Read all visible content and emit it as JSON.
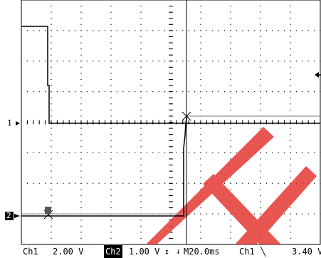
{
  "channels": [
    {
      "id": "ch1",
      "marker_label": "1",
      "status_label": "Ch1",
      "scale": "2.00 V",
      "color": "#000000"
    },
    {
      "id": "ch2",
      "marker_label": "2",
      "status_label": "Ch2",
      "scale": "1.00 V",
      "color": "#000000"
    }
  ],
  "ch2_scale_suffix": "↕",
  "timebase": "M20.0ms",
  "trigger": {
    "source": "Ch1",
    "slope_icon": "falling-edge-icon",
    "slope_glyph": "╲",
    "level": "3.40 V"
  },
  "trigger_position_icon": "trigger-position-arrow-icon",
  "trigger_level_icon": "trigger-level-arrow-icon",
  "grid": {
    "divisions_x": 10,
    "divisions_y": 8,
    "grid_color": "#000000"
  },
  "watermark_color": "#e53935"
}
